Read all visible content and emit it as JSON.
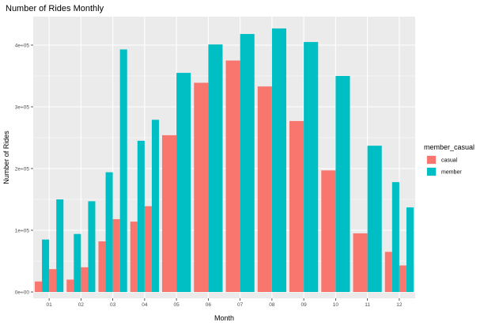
{
  "chart_data": {
    "type": "bar",
    "title": "Number of Rides Monthly",
    "xlabel": "Month",
    "ylabel": "Number of Rides",
    "categories": [
      "01",
      "02",
      "03",
      "04",
      "05",
      "06",
      "07",
      "08",
      "09",
      "10",
      "11",
      "12"
    ],
    "ylim": [
      0,
      440000
    ],
    "yticks": [
      0,
      100000,
      200000,
      300000,
      400000
    ],
    "ytick_labels": [
      "0e+00",
      "1e+05",
      "2e+05",
      "3e+05",
      "4e+05"
    ],
    "legend_title": "member_casual",
    "legend_position": "right",
    "grid": true,
    "background": "#EBEBEB",
    "series": [
      {
        "name": "casual",
        "color": "#F8766D",
        "segments": [
          [
            17000,
            37000
          ],
          [
            20000,
            40000
          ],
          [
            82000,
            118000
          ],
          [
            114000,
            139000
          ],
          [
            254000
          ],
          [
            339000
          ],
          [
            375000
          ],
          [
            333000
          ],
          [
            277000
          ],
          [
            197000
          ],
          [
            95000
          ],
          [
            65000,
            43000
          ]
        ]
      },
      {
        "name": "member",
        "color": "#00BFC4",
        "segments": [
          [
            85000,
            150000
          ],
          [
            94000,
            147000
          ],
          [
            194000,
            393000
          ],
          [
            245000,
            279000
          ],
          [
            355000
          ],
          [
            401000
          ],
          [
            418000
          ],
          [
            427000
          ],
          [
            405000
          ],
          [
            350000
          ],
          [
            237000
          ],
          [
            178000,
            137000
          ]
        ]
      }
    ]
  }
}
